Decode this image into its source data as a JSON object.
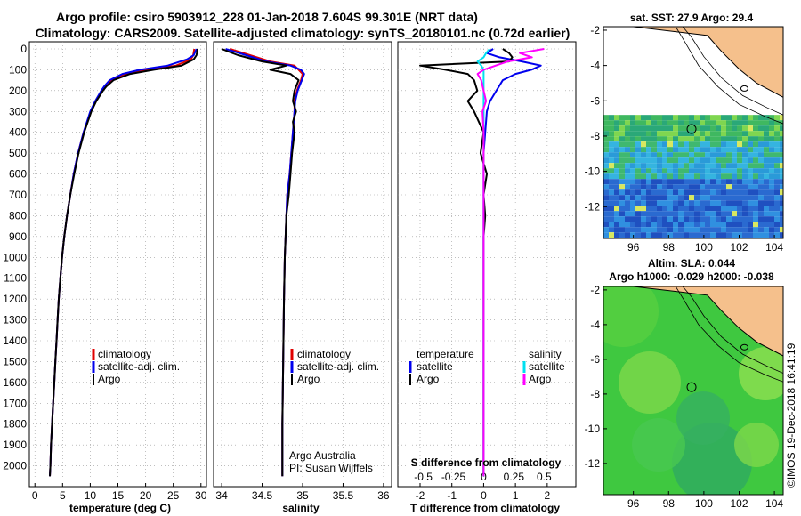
{
  "titles": {
    "line1": "Argo profile: csiro 5903912_228 01-Jan-2018 7.604S 99.301E (NRT data)",
    "line2": "Climatology: CARS2009. Satellite-adjusted climatology: synTS_20180101.nc (0.72d earlier)"
  },
  "map_top": {
    "title": "sat. SST: 27.9 Argo: 29.4"
  },
  "map_bottom": {
    "title1": "Altim. SLA: 0.044",
    "title2": "Argo h1000: -0.029 h2000: -0.038"
  },
  "credit": "©IMOS 19-Dec-2018 16:41:19",
  "notes": {
    "line1": "Argo Australia",
    "line2": "PI: Susan Wijffels"
  },
  "colors": {
    "climatology": "#e00000",
    "satellite": "#0000ee",
    "argo": "#000000",
    "sat_s": "#00e0f0",
    "argo_s": "#ff00ff",
    "land": "#f5c08c"
  },
  "chart_data": [
    {
      "type": "line",
      "xlabel": "temperature (deg C)",
      "ylabel": "",
      "xlim": [
        -1,
        31
      ],
      "ylim": [
        0,
        2100
      ],
      "y_reversed": true,
      "xticks": [
        "0",
        "5",
        "10",
        "15",
        "20",
        "25",
        "30"
      ],
      "yticks": [
        "0",
        "100",
        "200",
        "300",
        "400",
        "500",
        "600",
        "700",
        "800",
        "900",
        "1000",
        "1100",
        "1200",
        "1300",
        "1400",
        "1500",
        "1600",
        "1700",
        "1800",
        "1900",
        "2000"
      ],
      "legend": [
        "climatology",
        "satellite-adj. clim.",
        "Argo"
      ],
      "legend_position": "bottom-center",
      "depth": [
        0,
        30,
        50,
        80,
        100,
        120,
        150,
        180,
        200,
        250,
        300,
        400,
        500,
        600,
        700,
        800,
        900,
        1000,
        1100,
        1200,
        1300,
        1400,
        1500,
        1600,
        1700,
        1800,
        1900,
        2000,
        2050
      ],
      "series": [
        {
          "name": "climatology",
          "values": [
            28.8,
            28.6,
            28.2,
            25.5,
            20.5,
            16.5,
            13.8,
            12.7,
            12.2,
            11.0,
            10.1,
            8.8,
            7.8,
            7.0,
            6.4,
            5.8,
            5.3,
            4.9,
            4.6,
            4.3,
            4.1,
            3.9,
            3.7,
            3.5,
            3.3,
            3.1,
            2.9,
            2.8,
            2.7
          ]
        },
        {
          "name": "satellite-adj. clim.",
          "values": [
            29.2,
            28.7,
            27.5,
            24.0,
            19.0,
            15.8,
            13.5,
            12.5,
            12.0,
            10.9,
            10.0,
            8.8,
            7.8,
            7.0,
            6.4,
            5.8,
            5.3,
            4.9,
            4.6,
            4.3,
            4.1,
            3.9,
            3.7,
            3.5,
            3.3,
            3.1,
            2.9,
            2.8,
            2.7
          ]
        },
        {
          "name": "Argo",
          "values": [
            29.4,
            29.2,
            28.7,
            26.5,
            21.5,
            17.2,
            14.2,
            12.9,
            12.3,
            11.1,
            10.2,
            8.9,
            7.9,
            7.1,
            6.4,
            5.8,
            5.3,
            4.9,
            4.6,
            4.3,
            4.1,
            3.9,
            3.7,
            3.5,
            3.3,
            3.1,
            2.9,
            2.8,
            2.7
          ]
        }
      ]
    },
    {
      "type": "line",
      "xlabel": "salinity",
      "xlim": [
        33.9,
        36.1
      ],
      "ylim": [
        0,
        2100
      ],
      "y_reversed": true,
      "xticks": [
        "34",
        "34.5",
        "35",
        "35.5",
        "36"
      ],
      "legend": [
        "climatology",
        "satellite-adj. clim.",
        "Argo"
      ],
      "legend_position": "bottom-center",
      "depth": [
        0,
        30,
        60,
        80,
        100,
        120,
        150,
        200,
        250,
        300,
        350,
        400,
        500,
        600,
        700,
        800,
        900,
        1000,
        1200,
        1500,
        1800,
        2050
      ],
      "series": [
        {
          "name": "climatology",
          "values": [
            34.1,
            34.35,
            34.6,
            34.9,
            34.95,
            35.0,
            34.98,
            34.93,
            34.9,
            34.9,
            34.89,
            34.88,
            34.86,
            34.84,
            34.81,
            34.8,
            34.79,
            34.78,
            34.77,
            34.76,
            34.75,
            34.75
          ]
        },
        {
          "name": "satellite-adj. clim.",
          "values": [
            34.05,
            34.3,
            34.55,
            34.85,
            34.98,
            35.02,
            34.99,
            34.94,
            34.91,
            34.9,
            34.89,
            34.88,
            34.86,
            34.84,
            34.81,
            34.8,
            34.79,
            34.78,
            34.77,
            34.76,
            34.75,
            34.75
          ]
        },
        {
          "name": "Argo",
          "values": [
            34.0,
            34.2,
            34.5,
            34.8,
            34.6,
            34.85,
            34.95,
            34.9,
            34.88,
            34.92,
            34.88,
            34.9,
            34.87,
            34.85,
            34.83,
            34.8,
            34.79,
            34.78,
            34.77,
            34.76,
            34.75,
            34.75
          ]
        }
      ]
    },
    {
      "type": "line",
      "xlabel": "T difference from climatology",
      "xlabel_top": "S difference from climatology",
      "xlim": [
        -2.7,
        2.9
      ],
      "ylim": [
        0,
        2100
      ],
      "y_reversed": true,
      "xticks": [
        "-2",
        "-1",
        "0",
        "1",
        "2"
      ],
      "xticks_top": [
        "-0.5",
        "-0.25",
        "0",
        "0.25",
        "0.5"
      ],
      "legend_left_title": "temperature",
      "legend_right_title": "salinity",
      "legend": [
        "satellite",
        "Argo",
        "satellite",
        "Argo"
      ],
      "legend_position": "bottom",
      "depth": [
        0,
        20,
        40,
        60,
        80,
        100,
        120,
        150,
        200,
        250,
        300,
        400,
        500,
        600,
        700,
        800,
        900,
        1000,
        1200,
        1500,
        1800,
        2050
      ],
      "series": [
        {
          "name": "satellite",
          "values": [
            0.3,
            0.1,
            0.5,
            1.2,
            1.8,
            1.5,
            1.0,
            0.6,
            0.4,
            0.2,
            0.1,
            0.05,
            0.0,
            0.0,
            0.0,
            0.0,
            0.0,
            0.0,
            0.0,
            0.0,
            0.0,
            0.0
          ]
        },
        {
          "name": "Argo",
          "values": [
            0.6,
            0.8,
            0.9,
            0.8,
            -2.0,
            -1.2,
            -0.5,
            -0.3,
            -0.2,
            -0.5,
            -0.3,
            0.0,
            -0.1,
            0.1,
            0.0,
            0.05,
            0.0,
            0.0,
            0.0,
            0.0,
            0.0,
            0.0
          ]
        },
        {
          "name": "satellite",
          "values": [
            0.05,
            0.02,
            0.0,
            -0.05,
            -0.02,
            0.0,
            0.0,
            0.0,
            0.0,
            0.0,
            0.0,
            0.0,
            0.0,
            0.0,
            0.0,
            0.0,
            0.0,
            0.0,
            0.0,
            0.0,
            0.0,
            0.0
          ]
        },
        {
          "name": "Argo",
          "values": [
            0.5,
            0.3,
            0.4,
            0.2,
            0.1,
            0.0,
            -0.05,
            -0.02,
            0.0,
            0.02,
            -0.01,
            0.0,
            0.0,
            0.0,
            0.0,
            0.0,
            0.0,
            0.0,
            0.0,
            0.0,
            0.0,
            0.0
          ]
        }
      ]
    },
    {
      "type": "heatmap",
      "title": "sat. SST: 27.9 Argo: 29.4",
      "xlim": [
        94.3,
        104.5
      ],
      "ylim": [
        -13.8,
        -1.8
      ],
      "xticks": [
        "96",
        "98",
        "100",
        "102",
        "104"
      ],
      "yticks": [
        "-2",
        "-4",
        "-6",
        "-8",
        "-10",
        "-12"
      ],
      "argo_position": [
        99.3,
        -7.6
      ]
    },
    {
      "type": "heatmap",
      "title": "Altim. SLA: 0.044",
      "xlim": [
        94.3,
        104.5
      ],
      "ylim": [
        -13.8,
        -1.8
      ],
      "xticks": [
        "96",
        "98",
        "100",
        "102",
        "104"
      ],
      "yticks": [
        "-2",
        "-4",
        "-6",
        "-8",
        "-10",
        "-12"
      ],
      "argo_position": [
        99.3,
        -7.6
      ]
    }
  ]
}
